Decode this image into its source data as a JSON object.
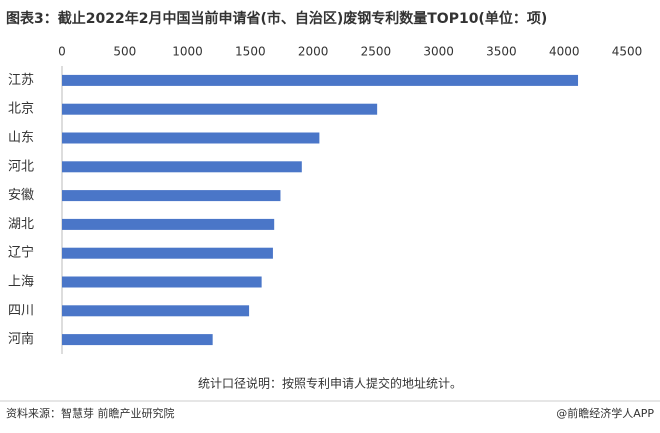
{
  "chart_data": {
    "type": "bar",
    "orientation": "horizontal",
    "title": "图表3：截止2022年2月中国当前申请省(市、自治区)废钢专利数量TOP10(单位：项)",
    "categories": [
      "江苏",
      "北京",
      "山东",
      "河北",
      "安徽",
      "湖北",
      "辽宁",
      "上海",
      "四川",
      "河南"
    ],
    "values": [
      4110,
      2510,
      2050,
      1910,
      1740,
      1690,
      1680,
      1590,
      1490,
      1200
    ],
    "color": "#4a76c8",
    "xlim": [
      0,
      4500
    ],
    "xticks": [
      0,
      500,
      1000,
      1500,
      2000,
      2500,
      3000,
      3500,
      4000,
      4500
    ],
    "note": "统计口径说明：按照专利申请人提交的地址统计。",
    "source": "资料来源：智慧芽 前瞻产业研究院",
    "credit": "@前瞻经济学人APP"
  }
}
